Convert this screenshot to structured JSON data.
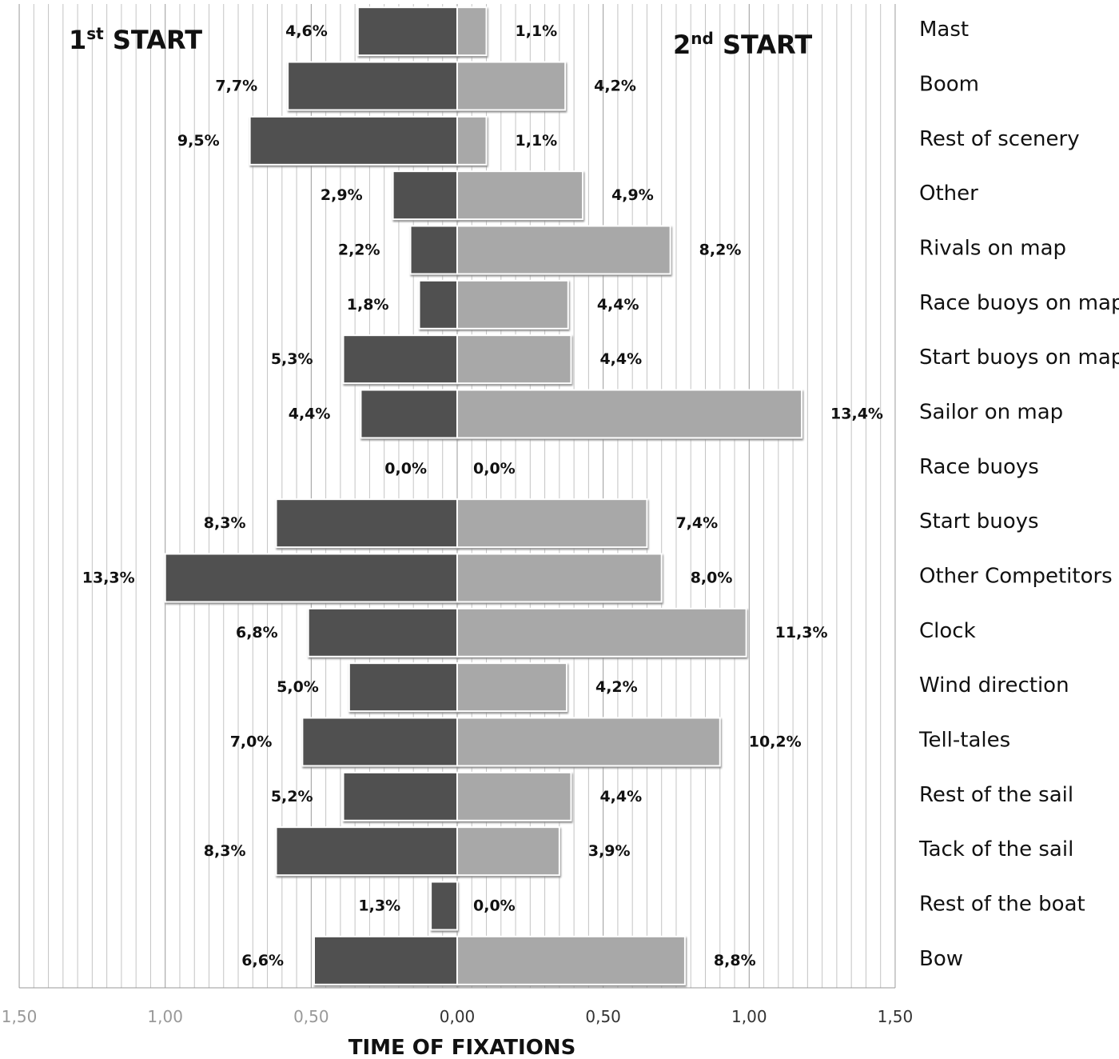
{
  "chart_data": {
    "type": "bar",
    "orientation": "horizontal",
    "layout": "diverging",
    "xlabel": "TIME OF FIXATIONS",
    "xlim": [
      -1.5,
      1.5
    ],
    "xticks": [
      "1,50",
      "1,00",
      "0,50",
      "0,00",
      "0,50",
      "1,00",
      "1,50"
    ],
    "grid": true,
    "categories": [
      "Mast",
      "Boom",
      "Rest of scenery",
      "Other",
      "Rivals on map",
      "Race buoys on map",
      "Start buoys on map",
      "Sailor on map",
      "Race buoys",
      "Start buoys",
      "Other Competitors",
      "Clock",
      "Wind direction",
      "Tell-tales",
      "Rest of the sail",
      "Tack of the sail",
      "Rest of the boat",
      "Bow"
    ],
    "series": [
      {
        "name": "1st START",
        "side": "left",
        "color": "#505050",
        "values": [
          0.34,
          0.58,
          0.71,
          0.22,
          0.16,
          0.13,
          0.39,
          0.33,
          0.0,
          0.62,
          1.0,
          0.51,
          0.37,
          0.53,
          0.39,
          0.62,
          0.09,
          0.49
        ],
        "labels": [
          "4,6%",
          "7,7%",
          "9,5%",
          "2,9%",
          "2,2%",
          "1,8%",
          "5,3%",
          "4,4%",
          "0,0%",
          "8,3%",
          "13,3%",
          "6,8%",
          "5,0%",
          "7,0%",
          "5,2%",
          "8,3%",
          "1,3%",
          "6,6%"
        ]
      },
      {
        "name": "2nd START",
        "side": "right",
        "color": "#a8a8a8",
        "values": [
          0.1,
          0.37,
          0.1,
          0.43,
          0.73,
          0.38,
          0.39,
          1.18,
          0.0,
          0.65,
          0.7,
          0.99,
          0.375,
          0.9,
          0.39,
          0.35,
          0.0,
          0.78
        ],
        "labels": [
          "1,1%",
          "4,2%",
          "1,1%",
          "4,9%",
          "8,2%",
          "4,4%",
          "4,4%",
          "13,4%",
          "0,0%",
          "7,4%",
          "8,0%",
          "11,3%",
          "4,2%",
          "10,2%",
          "4,4%",
          "3,9%",
          "0,0%",
          "8,8%"
        ]
      }
    ],
    "annotations": {
      "left_title": "1st START",
      "right_title": "2nd START"
    }
  }
}
